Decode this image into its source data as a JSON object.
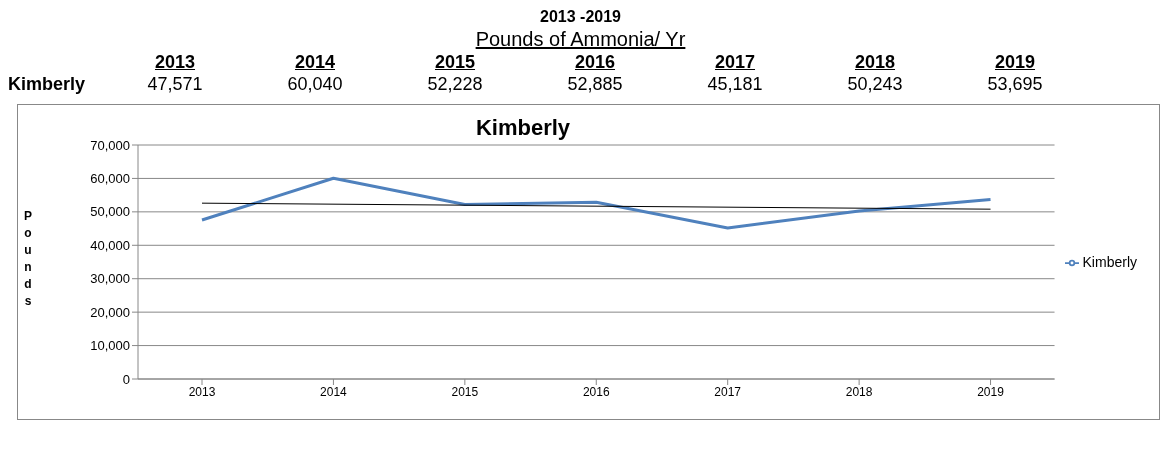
{
  "chart_data": {
    "type": "line",
    "title": "Kimberly",
    "ylabel": "Pounds",
    "annotations": [
      "2013 -2019",
      "Pounds of Ammonia/ Yr"
    ],
    "categories": [
      "2013",
      "2014",
      "2015",
      "2016",
      "2017",
      "2018",
      "2019"
    ],
    "series": [
      {
        "name": "Kimberly",
        "color": "#4f81bd",
        "values": [
          47571,
          60040,
          52228,
          52885,
          45181,
          50243,
          53695
        ],
        "value_labels": [
          "47,571",
          "60,040",
          "52,228",
          "52,885",
          "45,181",
          "50,243",
          "53,695"
        ]
      },
      {
        "type": "line",
        "color": "#000000",
        "values": [
          52600,
          null,
          null,
          null,
          null,
          null,
          50800
        ]
      }
    ],
    "ylim": [
      0,
      70000
    ],
    "yticks": [
      0,
      {
        "value": 10000,
        "label": "10,000"
      },
      {
        "value": 20000,
        "label": "20,000"
      },
      {
        "value": 30000,
        "label": "30,000"
      },
      {
        "value": 40000,
        "label": "40,000"
      },
      {
        "value": 50000,
        "label": "50,000"
      },
      {
        "value": 60000,
        "label": "60,000"
      },
      {
        "value": 70000,
        "label": "70,000"
      }
    ],
    "grid": "y",
    "legend": "right",
    "marker": "none",
    "line_style": "solid"
  }
}
